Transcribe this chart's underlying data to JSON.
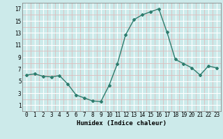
{
  "xlabel": "Humidex (Indice chaleur)",
  "x": [
    0,
    1,
    2,
    3,
    4,
    5,
    6,
    7,
    8,
    9,
    10,
    11,
    12,
    13,
    14,
    15,
    16,
    17,
    18,
    19,
    20,
    21,
    22,
    23
  ],
  "y": [
    6.0,
    6.2,
    5.8,
    5.7,
    5.9,
    4.5,
    2.7,
    2.2,
    1.7,
    1.6,
    4.3,
    7.9,
    12.7,
    15.2,
    16.0,
    16.5,
    17.0,
    13.1,
    8.6,
    7.9,
    7.2,
    6.0,
    7.5,
    7.2
  ],
  "line_color": "#2e7d6e",
  "marker": "D",
  "marker_size": 2.0,
  "bg_color": "#cceaea",
  "grid_major_color": "#ffffff",
  "grid_minor_color": "#ddbcbc",
  "xlim": [
    -0.5,
    23.5
  ],
  "ylim": [
    0,
    18
  ],
  "yticks": [
    1,
    3,
    5,
    7,
    9,
    11,
    13,
    15,
    17
  ],
  "xticks": [
    0,
    1,
    2,
    3,
    4,
    5,
    6,
    7,
    8,
    9,
    10,
    11,
    12,
    13,
    14,
    15,
    16,
    17,
    18,
    19,
    20,
    21,
    22,
    23
  ],
  "tick_fontsize": 5.5,
  "xlabel_fontsize": 6.5
}
